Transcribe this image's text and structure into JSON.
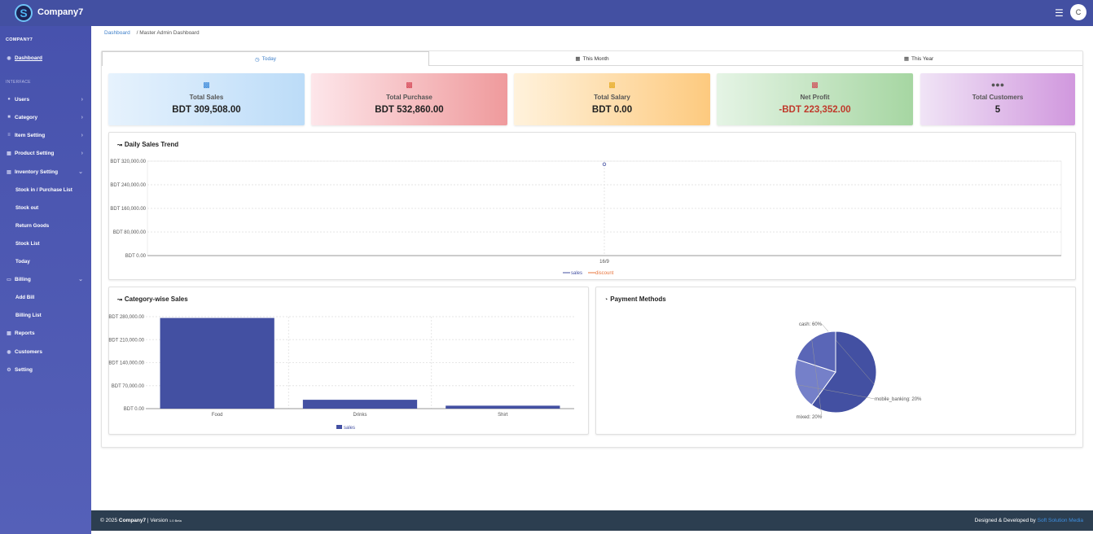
{
  "app": {
    "title": "Company7",
    "avatar_initial": "C"
  },
  "sidebar": {
    "company_heading": "COMPANY7",
    "interface_label": "INTERFACE",
    "items": [
      {
        "label": "Dashboard",
        "icon": "dashboard-icon"
      },
      {
        "label": "Users",
        "icon": "users-icon"
      },
      {
        "label": "Category",
        "icon": "folder-icon"
      },
      {
        "label": "Item Setting",
        "icon": "list-icon"
      },
      {
        "label": "Product Setting",
        "icon": "box-icon"
      },
      {
        "label": "Inventory Setting",
        "icon": "warehouse-icon"
      },
      {
        "label": "Billing",
        "icon": "billing-icon"
      },
      {
        "label": "Reports",
        "icon": "reports-icon"
      },
      {
        "label": "Customers",
        "icon": "customers-icon"
      },
      {
        "label": "Setting",
        "icon": "gear-icon"
      }
    ],
    "inventory_sub": [
      "Stock in / Purchase List",
      "Stock out",
      "Return Goods",
      "Stock List",
      "Today"
    ],
    "billing_sub": [
      "Add Bill",
      "Billing List"
    ]
  },
  "breadcrumb": {
    "root": "Dashboard",
    "current": "/ Master Admin Dashboard"
  },
  "tabs": [
    "Today",
    "This Month",
    "This Year"
  ],
  "cards": [
    {
      "title": "Total Sales",
      "value": "BDT 309,508.00",
      "icon": "money-icon"
    },
    {
      "title": "Total Purchase",
      "value": "BDT 532,860.00",
      "icon": "money-icon"
    },
    {
      "title": "Total Salary",
      "value": "BDT 0.00",
      "icon": "money-icon"
    },
    {
      "title": "Net Profit",
      "value": "-BDT 223,352.00",
      "icon": "calculator-icon"
    },
    {
      "title": "Total Customers",
      "value": "5",
      "icon": "users-icon"
    }
  ],
  "colors": {
    "primary": "#4350a2",
    "negative": "#c0392b",
    "link": "#3d7fc9",
    "footer": "#2c3e50",
    "discount": "#e8743b"
  },
  "chart_data": [
    {
      "type": "line",
      "title": "Daily Sales Trend",
      "x": [
        "16/9"
      ],
      "series": [
        {
          "name": "sales",
          "values": [
            309508
          ]
        },
        {
          "name": "discount",
          "values": [
            0
          ]
        }
      ],
      "ylim": [
        0,
        320000
      ],
      "yticks": [
        "BDT 0.00",
        "BDT 80,000.00",
        "BDT 160,000.00",
        "BDT 240,000.00",
        "BDT 320,000.00"
      ],
      "legend": "bottom"
    },
    {
      "type": "bar",
      "title": "Category-wise Sales",
      "categories": [
        "Food",
        "Drinks",
        "Shirt"
      ],
      "series": [
        {
          "name": "sales",
          "values": [
            276000,
            27000,
            9000
          ]
        }
      ],
      "ylim": [
        0,
        280000
      ],
      "yticks": [
        "BDT 0.00",
        "BDT 70,000.00",
        "BDT 140,000.00",
        "BDT 210,000.00",
        "BDT 280,000.00"
      ],
      "legend": "bottom"
    },
    {
      "type": "pie",
      "title": "Payment Methods",
      "slices": [
        {
          "label": "cash: 60%",
          "value": 60
        },
        {
          "label": "mobile_banking: 20%",
          "value": 20
        },
        {
          "label": "mixed: 20%",
          "value": 20
        }
      ]
    }
  ],
  "footer": {
    "left_prefix": "© 2025",
    "left_brand": "Company7",
    "left_version": "| Version",
    "version": "1.0 Beta",
    "right_prefix": "Designed & Developed by",
    "right_link": "Soft Solution Media"
  }
}
